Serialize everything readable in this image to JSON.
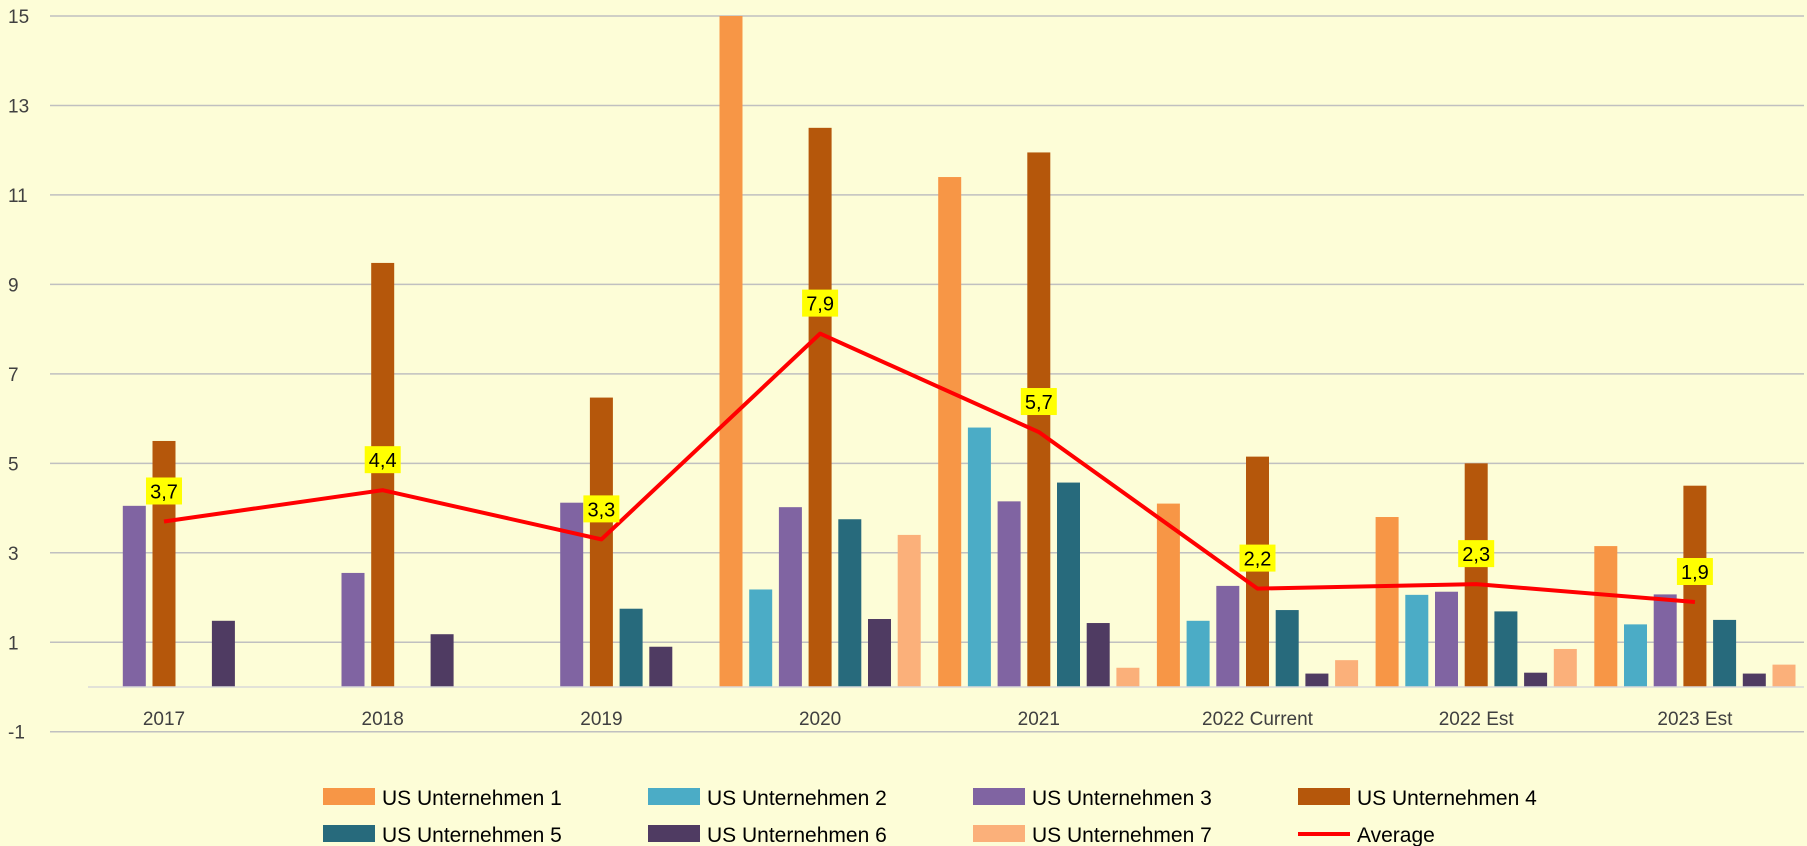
{
  "chart_data": {
    "type": "bar",
    "categories": [
      "2017",
      "2018",
      "2019",
      "2020",
      "2021",
      "2022  Current",
      "2022 Est",
      "2023 Est"
    ],
    "series": [
      {
        "name": "US Unternehmen 1",
        "color": "#f79646",
        "values": [
          null,
          null,
          null,
          15.0,
          11.4,
          4.1,
          3.8,
          3.15
        ]
      },
      {
        "name": "US Unternehmen 2",
        "color": "#4bacc6",
        "values": [
          null,
          null,
          null,
          2.18,
          5.8,
          1.48,
          2.06,
          1.4
        ]
      },
      {
        "name": "US Unternehmen 3",
        "color": "#8064a2",
        "values": [
          4.05,
          2.55,
          4.12,
          4.02,
          4.15,
          2.26,
          2.13,
          2.07
        ]
      },
      {
        "name": "US Unternehmen 4",
        "color": "#b5570b",
        "values": [
          5.5,
          9.48,
          6.47,
          12.5,
          11.95,
          5.15,
          5.0,
          4.5
        ]
      },
      {
        "name": "US Unternehmen 5",
        "color": "#276a7c",
        "values": [
          null,
          null,
          1.75,
          3.75,
          4.57,
          1.72,
          1.69,
          1.5
        ]
      },
      {
        "name": "US Unternehmen 6",
        "color": "#4f3b62",
        "values": [
          1.48,
          1.18,
          0.9,
          1.52,
          1.43,
          0.3,
          0.32,
          0.3
        ]
      },
      {
        "name": "US Unternehmen 7",
        "color": "#fbb07a",
        "values": [
          null,
          null,
          null,
          3.4,
          0.43,
          0.6,
          0.85,
          0.5
        ]
      }
    ],
    "line_series": {
      "name": "Average",
      "color": "#ff0000",
      "values": [
        3.7,
        4.4,
        3.3,
        7.9,
        5.7,
        2.2,
        2.3,
        1.9
      ],
      "labels": [
        "3,7",
        "4,4",
        "3,3",
        "7,9",
        "5,7",
        "2,2",
        "2,3",
        "1,9"
      ]
    },
    "y_ticks": [
      "15",
      "13",
      "11",
      "9",
      "7",
      "5",
      "3",
      "1",
      "-1"
    ],
    "y_tick_values": [
      15,
      13,
      11,
      9,
      7,
      5,
      3,
      1,
      -1
    ],
    "ylim": [
      -1,
      15
    ],
    "grid": true,
    "legend_position": "bottom",
    "title": "",
    "xlabel": "",
    "ylabel": ""
  },
  "colors": {
    "background": "#fdfdd7",
    "gridline": "#c0c0c0",
    "label_highlight": "#ffff00"
  }
}
